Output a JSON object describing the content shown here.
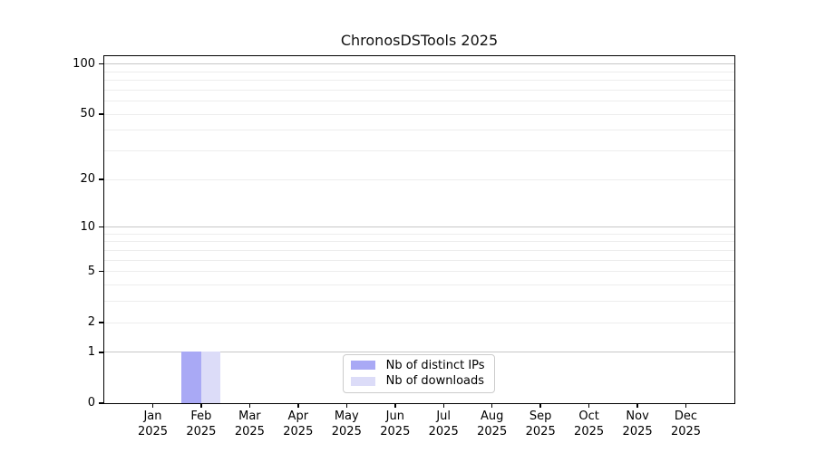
{
  "chart_data": {
    "type": "bar",
    "title": "ChronosDSTools 2025",
    "categories": [
      "Jan",
      "Feb",
      "Mar",
      "Apr",
      "May",
      "Jun",
      "Jul",
      "Aug",
      "Sep",
      "Oct",
      "Nov",
      "Dec"
    ],
    "year": "2025",
    "series": [
      {
        "name": "Nb of distinct IPs",
        "color": "#a9a9f5",
        "values": [
          0,
          1,
          0,
          0,
          0,
          0,
          0,
          0,
          0,
          0,
          0,
          0
        ]
      },
      {
        "name": "Nb of downloads",
        "color": "#dcdcf8",
        "values": [
          0,
          1,
          0,
          0,
          0,
          0,
          0,
          0,
          0,
          0,
          0,
          0
        ]
      }
    ],
    "xlabel": "",
    "ylabel": "",
    "yscale": "log1p",
    "ylim": [
      0,
      112
    ],
    "yticks": [
      0,
      1,
      2,
      5,
      10,
      20,
      50,
      100
    ],
    "gridline_values": [
      1,
      2,
      3,
      4,
      5,
      6,
      7,
      8,
      9,
      10,
      20,
      30,
      40,
      50,
      60,
      70,
      80,
      90,
      100
    ],
    "decade_gridlines": [
      1,
      10,
      100
    ],
    "grid": true,
    "legend_position": "lower center"
  }
}
